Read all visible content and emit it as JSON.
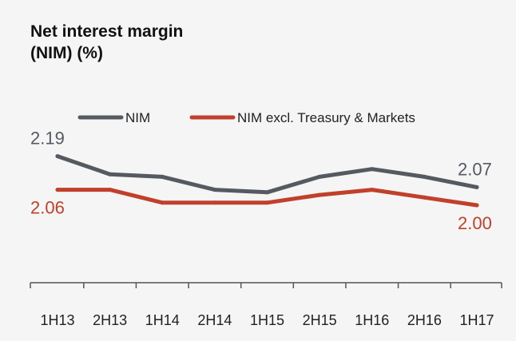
{
  "title": {
    "line1": "Net interest margin",
    "line2": "(NIM) (%)"
  },
  "colors": {
    "nim": "#555a60",
    "nim_excl": "#c0402a",
    "axis": "#555555",
    "text": "#222222",
    "background": "#f5f5f5"
  },
  "chart_data": {
    "type": "line",
    "categories": [
      "1H13",
      "2H13",
      "1H14",
      "2H14",
      "1H15",
      "2H15",
      "1H16",
      "2H16",
      "1H17"
    ],
    "series": [
      {
        "name": "NIM",
        "color": "#555a60",
        "values": [
          2.19,
          2.12,
          2.11,
          2.06,
          2.05,
          2.11,
          2.14,
          2.11,
          2.07
        ],
        "labels": [
          {
            "index": 0,
            "text": "2.19"
          },
          {
            "index": 8,
            "text": "2.07"
          }
        ]
      },
      {
        "name": "NIM excl. Treasury & Markets",
        "color": "#c0402a",
        "values": [
          2.06,
          2.06,
          2.01,
          2.01,
          2.01,
          2.04,
          2.06,
          2.03,
          2.0
        ],
        "labels": [
          {
            "index": 0,
            "text": "2.06"
          },
          {
            "index": 8,
            "text": "2.00"
          }
        ]
      }
    ],
    "ylim": [
      1.7,
      2.3
    ],
    "xlabel": "",
    "ylabel": "",
    "grid": false,
    "legend": "top"
  }
}
